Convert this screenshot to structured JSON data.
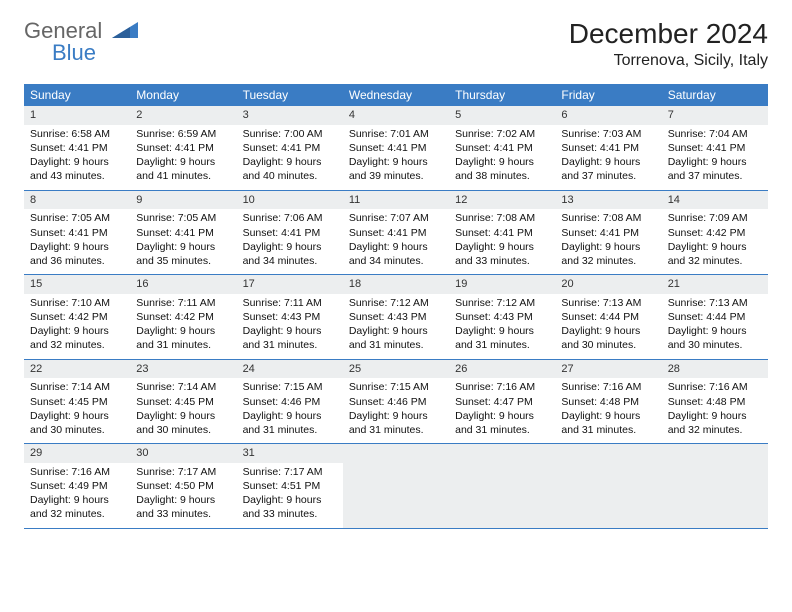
{
  "logo": {
    "text1": "General",
    "text2": "Blue",
    "color_text": "#666666",
    "color_blue": "#3a7cc4"
  },
  "title": "December 2024",
  "location": "Torrenova, Sicily, Italy",
  "header_bg": "#3a7cc4",
  "daynum_bg": "#eceeef",
  "weekdays": [
    "Sunday",
    "Monday",
    "Tuesday",
    "Wednesday",
    "Thursday",
    "Friday",
    "Saturday"
  ],
  "weeks": [
    [
      {
        "d": "1",
        "sr": "Sunrise: 6:58 AM",
        "ss": "Sunset: 4:41 PM",
        "dl1": "Daylight: 9 hours",
        "dl2": "and 43 minutes."
      },
      {
        "d": "2",
        "sr": "Sunrise: 6:59 AM",
        "ss": "Sunset: 4:41 PM",
        "dl1": "Daylight: 9 hours",
        "dl2": "and 41 minutes."
      },
      {
        "d": "3",
        "sr": "Sunrise: 7:00 AM",
        "ss": "Sunset: 4:41 PM",
        "dl1": "Daylight: 9 hours",
        "dl2": "and 40 minutes."
      },
      {
        "d": "4",
        "sr": "Sunrise: 7:01 AM",
        "ss": "Sunset: 4:41 PM",
        "dl1": "Daylight: 9 hours",
        "dl2": "and 39 minutes."
      },
      {
        "d": "5",
        "sr": "Sunrise: 7:02 AM",
        "ss": "Sunset: 4:41 PM",
        "dl1": "Daylight: 9 hours",
        "dl2": "and 38 minutes."
      },
      {
        "d": "6",
        "sr": "Sunrise: 7:03 AM",
        "ss": "Sunset: 4:41 PM",
        "dl1": "Daylight: 9 hours",
        "dl2": "and 37 minutes."
      },
      {
        "d": "7",
        "sr": "Sunrise: 7:04 AM",
        "ss": "Sunset: 4:41 PM",
        "dl1": "Daylight: 9 hours",
        "dl2": "and 37 minutes."
      }
    ],
    [
      {
        "d": "8",
        "sr": "Sunrise: 7:05 AM",
        "ss": "Sunset: 4:41 PM",
        "dl1": "Daylight: 9 hours",
        "dl2": "and 36 minutes."
      },
      {
        "d": "9",
        "sr": "Sunrise: 7:05 AM",
        "ss": "Sunset: 4:41 PM",
        "dl1": "Daylight: 9 hours",
        "dl2": "and 35 minutes."
      },
      {
        "d": "10",
        "sr": "Sunrise: 7:06 AM",
        "ss": "Sunset: 4:41 PM",
        "dl1": "Daylight: 9 hours",
        "dl2": "and 34 minutes."
      },
      {
        "d": "11",
        "sr": "Sunrise: 7:07 AM",
        "ss": "Sunset: 4:41 PM",
        "dl1": "Daylight: 9 hours",
        "dl2": "and 34 minutes."
      },
      {
        "d": "12",
        "sr": "Sunrise: 7:08 AM",
        "ss": "Sunset: 4:41 PM",
        "dl1": "Daylight: 9 hours",
        "dl2": "and 33 minutes."
      },
      {
        "d": "13",
        "sr": "Sunrise: 7:08 AM",
        "ss": "Sunset: 4:41 PM",
        "dl1": "Daylight: 9 hours",
        "dl2": "and 32 minutes."
      },
      {
        "d": "14",
        "sr": "Sunrise: 7:09 AM",
        "ss": "Sunset: 4:42 PM",
        "dl1": "Daylight: 9 hours",
        "dl2": "and 32 minutes."
      }
    ],
    [
      {
        "d": "15",
        "sr": "Sunrise: 7:10 AM",
        "ss": "Sunset: 4:42 PM",
        "dl1": "Daylight: 9 hours",
        "dl2": "and 32 minutes."
      },
      {
        "d": "16",
        "sr": "Sunrise: 7:11 AM",
        "ss": "Sunset: 4:42 PM",
        "dl1": "Daylight: 9 hours",
        "dl2": "and 31 minutes."
      },
      {
        "d": "17",
        "sr": "Sunrise: 7:11 AM",
        "ss": "Sunset: 4:43 PM",
        "dl1": "Daylight: 9 hours",
        "dl2": "and 31 minutes."
      },
      {
        "d": "18",
        "sr": "Sunrise: 7:12 AM",
        "ss": "Sunset: 4:43 PM",
        "dl1": "Daylight: 9 hours",
        "dl2": "and 31 minutes."
      },
      {
        "d": "19",
        "sr": "Sunrise: 7:12 AM",
        "ss": "Sunset: 4:43 PM",
        "dl1": "Daylight: 9 hours",
        "dl2": "and 31 minutes."
      },
      {
        "d": "20",
        "sr": "Sunrise: 7:13 AM",
        "ss": "Sunset: 4:44 PM",
        "dl1": "Daylight: 9 hours",
        "dl2": "and 30 minutes."
      },
      {
        "d": "21",
        "sr": "Sunrise: 7:13 AM",
        "ss": "Sunset: 4:44 PM",
        "dl1": "Daylight: 9 hours",
        "dl2": "and 30 minutes."
      }
    ],
    [
      {
        "d": "22",
        "sr": "Sunrise: 7:14 AM",
        "ss": "Sunset: 4:45 PM",
        "dl1": "Daylight: 9 hours",
        "dl2": "and 30 minutes."
      },
      {
        "d": "23",
        "sr": "Sunrise: 7:14 AM",
        "ss": "Sunset: 4:45 PM",
        "dl1": "Daylight: 9 hours",
        "dl2": "and 30 minutes."
      },
      {
        "d": "24",
        "sr": "Sunrise: 7:15 AM",
        "ss": "Sunset: 4:46 PM",
        "dl1": "Daylight: 9 hours",
        "dl2": "and 31 minutes."
      },
      {
        "d": "25",
        "sr": "Sunrise: 7:15 AM",
        "ss": "Sunset: 4:46 PM",
        "dl1": "Daylight: 9 hours",
        "dl2": "and 31 minutes."
      },
      {
        "d": "26",
        "sr": "Sunrise: 7:16 AM",
        "ss": "Sunset: 4:47 PM",
        "dl1": "Daylight: 9 hours",
        "dl2": "and 31 minutes."
      },
      {
        "d": "27",
        "sr": "Sunrise: 7:16 AM",
        "ss": "Sunset: 4:48 PM",
        "dl1": "Daylight: 9 hours",
        "dl2": "and 31 minutes."
      },
      {
        "d": "28",
        "sr": "Sunrise: 7:16 AM",
        "ss": "Sunset: 4:48 PM",
        "dl1": "Daylight: 9 hours",
        "dl2": "and 32 minutes."
      }
    ],
    [
      {
        "d": "29",
        "sr": "Sunrise: 7:16 AM",
        "ss": "Sunset: 4:49 PM",
        "dl1": "Daylight: 9 hours",
        "dl2": "and 32 minutes."
      },
      {
        "d": "30",
        "sr": "Sunrise: 7:17 AM",
        "ss": "Sunset: 4:50 PM",
        "dl1": "Daylight: 9 hours",
        "dl2": "and 33 minutes."
      },
      {
        "d": "31",
        "sr": "Sunrise: 7:17 AM",
        "ss": "Sunset: 4:51 PM",
        "dl1": "Daylight: 9 hours",
        "dl2": "and 33 minutes."
      },
      null,
      null,
      null,
      null
    ]
  ]
}
